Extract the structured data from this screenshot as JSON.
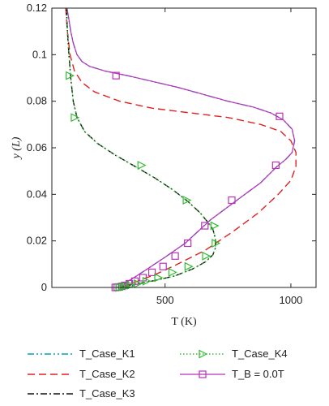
{
  "chart_data": {
    "type": "line",
    "title": "",
    "xlabel": "T (K)",
    "ylabel": "y (L)",
    "xlim": [
      50,
      1100
    ],
    "ylim": [
      0,
      0.12
    ],
    "xticks": [
      "500",
      "1000"
    ],
    "yticks": [
      "0",
      "0.02",
      "0.04",
      "0.06",
      "0.08",
      "0.1",
      "0.12"
    ],
    "grid": false,
    "legend_position": "below",
    "colors": {
      "K1": "#00a0b8",
      "K2": "#e02020",
      "K3": "#111111",
      "K4": "#33bb33",
      "B": "#b833b8"
    },
    "series": [
      {
        "name": "T_Case_K1",
        "key": "K1",
        "x": [
          110,
          118,
          125,
          135,
          150,
          170,
          200,
          260,
          350,
          450,
          550,
          650,
          750,
          850,
          920,
          970,
          1005,
          1015,
          1005,
          980,
          945,
          880,
          780,
          680,
          580,
          500,
          430,
          380,
          350,
          335,
          325
        ],
        "y": [
          0.12,
          0.115,
          0.11,
          0.105,
          0.1,
          0.097,
          0.095,
          0.093,
          0.091,
          0.0885,
          0.086,
          0.083,
          0.08,
          0.0775,
          0.075,
          0.072,
          0.068,
          0.063,
          0.058,
          0.055,
          0.052,
          0.045,
          0.037,
          0.029,
          0.019,
          0.013,
          0.008,
          0.0045,
          0.0025,
          0.001,
          0.0
        ]
      },
      {
        "name": "T_Case_K2",
        "key": "K2",
        "x": [
          105,
          112,
          122,
          140,
          170,
          220,
          320,
          450,
          600,
          750,
          880,
          960,
          1000,
          1020,
          1020,
          1000,
          950,
          870,
          770,
          660,
          550,
          470,
          400,
          360,
          340,
          325
        ],
        "y": [
          0.12,
          0.11,
          0.1,
          0.093,
          0.088,
          0.084,
          0.08,
          0.077,
          0.075,
          0.073,
          0.07,
          0.067,
          0.063,
          0.058,
          0.052,
          0.046,
          0.04,
          0.032,
          0.024,
          0.016,
          0.01,
          0.006,
          0.003,
          0.0015,
          0.0007,
          0.0
        ]
      },
      {
        "name": "T_Case_K3",
        "key": "K3",
        "x": [
          108,
          112,
          118,
          125,
          135,
          150,
          180,
          230,
          300,
          380,
          460,
          530,
          590,
          640,
          670,
          690,
          700,
          700,
          690,
          660,
          610,
          540,
          460,
          400,
          360,
          330,
          310
        ],
        "y": [
          0.12,
          0.11,
          0.1,
          0.09,
          0.08,
          0.073,
          0.067,
          0.062,
          0.057,
          0.052,
          0.047,
          0.042,
          0.037,
          0.032,
          0.028,
          0.025,
          0.021,
          0.017,
          0.014,
          0.011,
          0.008,
          0.005,
          0.003,
          0.0018,
          0.001,
          0.0004,
          0.0
        ]
      },
      {
        "name": "T_Case_K4",
        "key": "K4",
        "x": [
          108,
          112,
          118,
          125,
          135,
          150,
          180,
          230,
          300,
          380,
          460,
          530,
          590,
          640,
          670,
          690,
          700,
          700,
          690,
          660,
          610,
          540,
          460,
          400,
          360,
          330,
          310
        ],
        "y": [
          0.12,
          0.11,
          0.1,
          0.09,
          0.08,
          0.073,
          0.067,
          0.062,
          0.057,
          0.052,
          0.047,
          0.042,
          0.037,
          0.032,
          0.028,
          0.025,
          0.021,
          0.017,
          0.014,
          0.011,
          0.008,
          0.005,
          0.003,
          0.0018,
          0.001,
          0.0004,
          0.0
        ],
        "markers": {
          "x": [
            120,
            140,
            405,
            585,
            695,
            700,
            662,
            592,
            528,
            472,
            425,
            390,
            362,
            342,
            330,
            318
          ],
          "y": [
            0.091,
            0.073,
            0.0525,
            0.0375,
            0.0265,
            0.019,
            0.0135,
            0.009,
            0.0065,
            0.0042,
            0.0027,
            0.0016,
            0.0009,
            0.0005,
            0.0002,
            0.0
          ]
        }
      },
      {
        "name": "T_B = 0.0T",
        "key": "B",
        "x": [
          110,
          118,
          125,
          135,
          150,
          170,
          200,
          260,
          350,
          450,
          550,
          650,
          750,
          850,
          920,
          970,
          1005,
          1015,
          1005,
          980,
          945,
          880,
          780,
          680,
          580,
          500,
          430,
          380,
          350,
          335,
          325
        ],
        "y": [
          0.12,
          0.115,
          0.11,
          0.105,
          0.1,
          0.097,
          0.095,
          0.093,
          0.091,
          0.0885,
          0.086,
          0.083,
          0.08,
          0.0775,
          0.075,
          0.072,
          0.068,
          0.063,
          0.058,
          0.055,
          0.052,
          0.045,
          0.037,
          0.029,
          0.019,
          0.013,
          0.008,
          0.0045,
          0.0025,
          0.001,
          0.0
        ],
        "markers": {
          "x": [
            305,
            955,
            940,
            765,
            658,
            590,
            540,
            492,
            448,
            412,
            380,
            358,
            340,
            328,
            318,
            310,
            302
          ],
          "y": [
            0.091,
            0.0735,
            0.0525,
            0.0375,
            0.0265,
            0.019,
            0.0135,
            0.009,
            0.0065,
            0.0042,
            0.0027,
            0.0016,
            0.0009,
            0.0005,
            0.0002,
            0.0001,
            0.0
          ]
        }
      }
    ]
  }
}
